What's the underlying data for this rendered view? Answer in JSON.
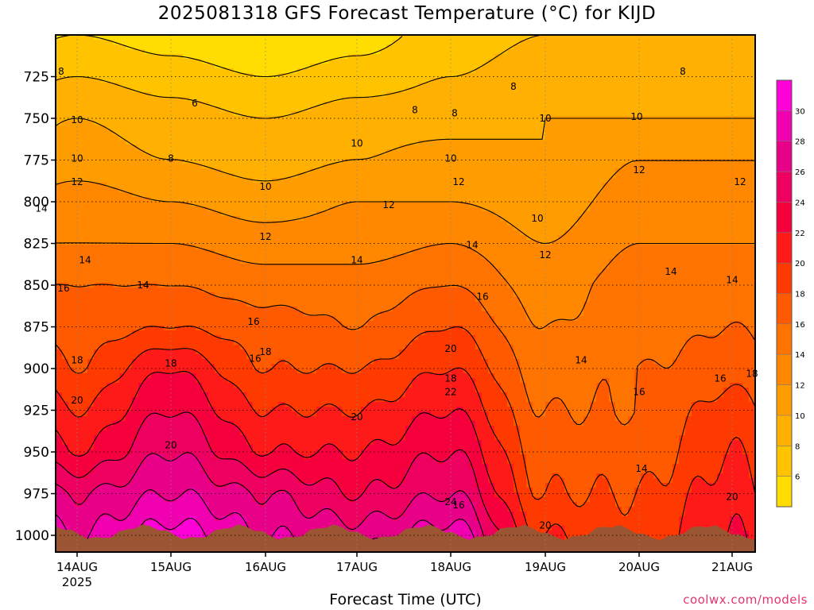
{
  "title": "2025081318 GFS Forecast Temperature (°C) for KIJD",
  "xlabel": "Forecast Time (UTC)",
  "credit": "coolwx.com/models",
  "chart_data": {
    "type": "heatmap",
    "title": "2025081318 GFS Forecast Temperature (°C) for KIJD",
    "xlabel": "Forecast Time (UTC)",
    "ylabel": "",
    "x_ticks": [
      "14AUG",
      "15AUG",
      "16AUG",
      "17AUG",
      "18AUG",
      "19AUG",
      "20AUG",
      "21AUG"
    ],
    "x_tick_sublabel": "2025",
    "y_ticks": [
      725,
      750,
      775,
      800,
      825,
      850,
      875,
      900,
      925,
      950,
      975,
      1000
    ],
    "y_range_hpa": [
      700,
      1010
    ],
    "y_axis_inverted": true,
    "grid": true,
    "colorbar": {
      "ticks": [
        6,
        8,
        10,
        12,
        14,
        16,
        18,
        20,
        22,
        24,
        26,
        28,
        30
      ],
      "levels": [
        4,
        6,
        8,
        10,
        12,
        14,
        16,
        18,
        20,
        22,
        24,
        26,
        28,
        30,
        32
      ],
      "colors": [
        "#ffdd00",
        "#ffc300",
        "#ffb000",
        "#ff9d00",
        "#ff8800",
        "#ff7300",
        "#ff5a00",
        "#ff3a00",
        "#ff1a1a",
        "#f5003c",
        "#ee0060",
        "#e80088",
        "#f000b0",
        "#ff00d8"
      ],
      "placement": "right"
    },
    "series": [
      {
        "time": "14AUG",
        "levels_hpa": [
          725,
          750,
          775,
          800,
          825,
          850,
          875,
          900,
          925,
          950,
          975,
          1000
        ],
        "temperature_c": [
          8,
          10,
          11,
          13,
          14,
          16,
          17,
          18,
          20,
          22,
          26,
          28
        ]
      },
      {
        "time": "15AUG",
        "levels_hpa": [
          725,
          750,
          775,
          800,
          825,
          850,
          875,
          900,
          925,
          950,
          975,
          1000
        ],
        "temperature_c": [
          7,
          9,
          10,
          12,
          14,
          16,
          18,
          22,
          24,
          26,
          28,
          31
        ]
      },
      {
        "time": "16AUG",
        "levels_hpa": [
          725,
          750,
          775,
          800,
          825,
          850,
          875,
          900,
          925,
          950,
          975,
          1000
        ],
        "temperature_c": [
          6,
          8,
          9,
          11,
          13,
          15,
          17,
          18,
          20,
          22,
          26,
          28
        ]
      },
      {
        "time": "17AUG",
        "levels_hpa": [
          725,
          750,
          775,
          800,
          825,
          850,
          875,
          900,
          925,
          950,
          975,
          1000
        ],
        "temperature_c": [
          7,
          9,
          10,
          12,
          13,
          15,
          16,
          18,
          20,
          22,
          24,
          27
        ]
      },
      {
        "time": "18AUG",
        "levels_hpa": [
          725,
          750,
          775,
          800,
          825,
          850,
          875,
          900,
          925,
          950,
          975,
          1000
        ],
        "temperature_c": [
          8,
          9,
          11,
          12,
          14,
          16,
          18,
          20,
          22,
          24,
          26,
          29
        ]
      },
      {
        "time": "19AUG",
        "levels_hpa": [
          725,
          750,
          775,
          800,
          825,
          850,
          875,
          900,
          925,
          950,
          975,
          1000
        ],
        "temperature_c": [
          9,
          10,
          10,
          11,
          12,
          13,
          14,
          15,
          16,
          17,
          18,
          20
        ]
      },
      {
        "time": "20AUG",
        "levels_hpa": [
          725,
          750,
          775,
          800,
          825,
          850,
          875,
          900,
          925,
          950,
          975,
          1000
        ],
        "temperature_c": [
          9,
          10,
          12,
          13,
          14,
          15,
          15,
          16,
          16,
          17,
          18,
          19
        ]
      },
      {
        "time": "21AUG",
        "levels_hpa": [
          725,
          750,
          775,
          800,
          825,
          850,
          875,
          900,
          925,
          950,
          975,
          1000
        ],
        "temperature_c": [
          9,
          10,
          12,
          13,
          14,
          15,
          16,
          17,
          19,
          20,
          21,
          22
        ]
      }
    ],
    "contour_labels": [
      {
        "value": "8",
        "time": "14AUG",
        "hpa": 722
      },
      {
        "value": "6",
        "time": "15AUG",
        "hpa": 741
      },
      {
        "value": "8",
        "time": "18AUG",
        "hpa": 747
      },
      {
        "value": "8",
        "time": "18AUG",
        "hpa": 745
      },
      {
        "value": "8",
        "time": "19AUG",
        "hpa": 731
      },
      {
        "value": "8",
        "time": "20AUG",
        "hpa": 722
      },
      {
        "value": "10",
        "time": "14AUG",
        "hpa": 751
      },
      {
        "value": "10",
        "time": "14AUG",
        "hpa": 774
      },
      {
        "value": "8",
        "time": "15AUG",
        "hpa": 774
      },
      {
        "value": "10",
        "time": "16AUG",
        "hpa": 791
      },
      {
        "value": "10",
        "time": "17AUG",
        "hpa": 765
      },
      {
        "value": "10",
        "time": "18AUG",
        "hpa": 774
      },
      {
        "value": "10",
        "time": "19AUG",
        "hpa": 810
      },
      {
        "value": "10",
        "time": "19AUG",
        "hpa": 750
      },
      {
        "value": "10",
        "time": "20AUG",
        "hpa": 749
      },
      {
        "value": "12",
        "time": "14AUG",
        "hpa": 788
      },
      {
        "value": "14",
        "time": "14AUG",
        "hpa": 804
      },
      {
        "value": "12",
        "time": "16AUG",
        "hpa": 821
      },
      {
        "value": "12",
        "time": "17AUG",
        "hpa": 802
      },
      {
        "value": "12",
        "time": "18AUG",
        "hpa": 788
      },
      {
        "value": "12",
        "time": "19AUG",
        "hpa": 832
      },
      {
        "value": "12",
        "time": "20AUG",
        "hpa": 781
      },
      {
        "value": "12",
        "time": "21AUG",
        "hpa": 788
      },
      {
        "value": "14",
        "time": "14AUG",
        "hpa": 835
      },
      {
        "value": "14",
        "time": "15AUG",
        "hpa": 850
      },
      {
        "value": "14",
        "time": "17AUG",
        "hpa": 835
      },
      {
        "value": "14",
        "time": "18AUG",
        "hpa": 826
      },
      {
        "value": "14",
        "time": "20AUG",
        "hpa": 842
      },
      {
        "value": "14",
        "time": "21AUG",
        "hpa": 847
      },
      {
        "value": "16",
        "time": "14AUG",
        "hpa": 852
      },
      {
        "value": "16",
        "time": "16AUG",
        "hpa": 872
      },
      {
        "value": "16",
        "time": "18AUG",
        "hpa": 857
      },
      {
        "value": "16",
        "time": "16AUG",
        "hpa": 894
      },
      {
        "value": "14",
        "time": "19AUG",
        "hpa": 895
      },
      {
        "value": "16",
        "time": "20AUG",
        "hpa": 914
      },
      {
        "value": "16",
        "time": "21AUG",
        "hpa": 906
      },
      {
        "value": "18",
        "time": "14AUG",
        "hpa": 895
      },
      {
        "value": "18",
        "time": "15AUG",
        "hpa": 897
      },
      {
        "value": "18",
        "time": "16AUG",
        "hpa": 890
      },
      {
        "value": "18",
        "time": "18AUG",
        "hpa": 906
      },
      {
        "value": "18",
        "time": "21AUG",
        "hpa": 903
      },
      {
        "value": "20",
        "time": "14AUG",
        "hpa": 919
      },
      {
        "value": "20",
        "time": "15AUG",
        "hpa": 946
      },
      {
        "value": "20",
        "time": "17AUG",
        "hpa": 929
      },
      {
        "value": "20",
        "time": "18AUG",
        "hpa": 888
      },
      {
        "value": "22",
        "time": "18AUG",
        "hpa": 914
      },
      {
        "value": "24",
        "time": "18AUG",
        "hpa": 980
      },
      {
        "value": "16",
        "time": "18AUG",
        "hpa": 982
      },
      {
        "value": "20",
        "time": "19AUG",
        "hpa": 994
      },
      {
        "value": "14",
        "time": "20AUG",
        "hpa": 960
      },
      {
        "value": "20",
        "time": "21AUG",
        "hpa": 977
      }
    ]
  }
}
